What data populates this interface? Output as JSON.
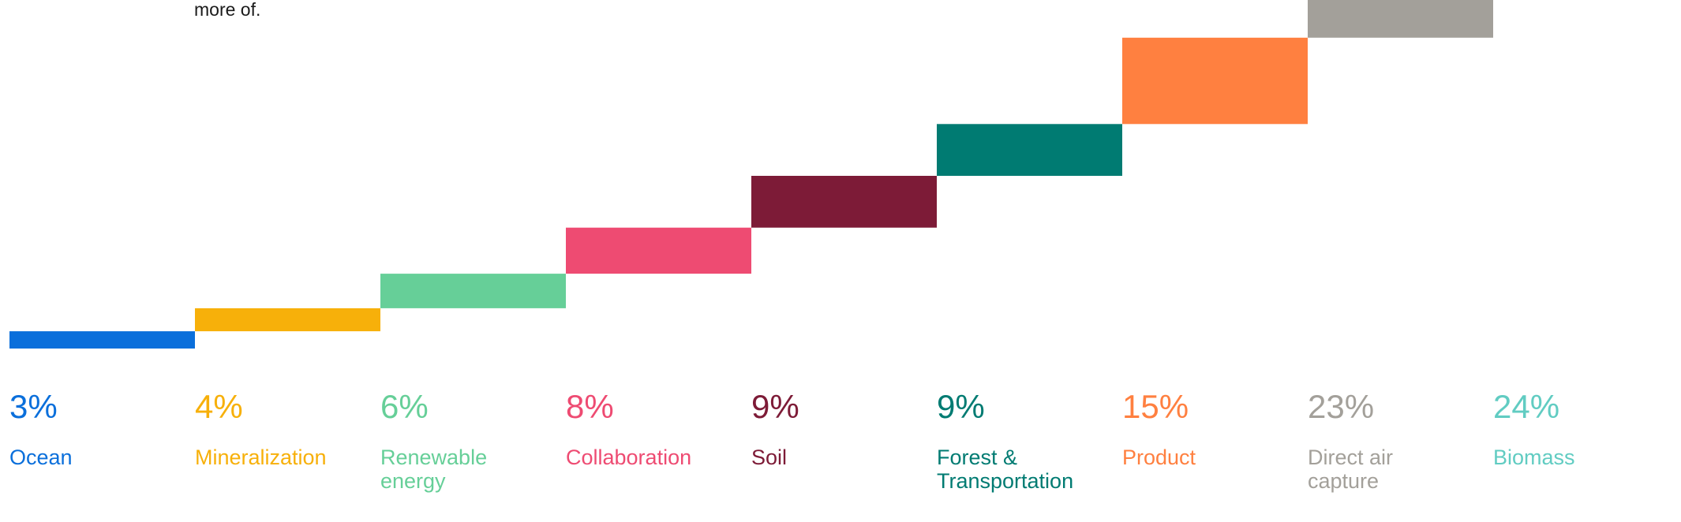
{
  "intro_text": "more of.",
  "chart_data": {
    "type": "bar",
    "categories": [
      "Ocean",
      "Mineralization",
      "Renewable energy",
      "Collaboration",
      "Soil",
      "Forest & Transportation",
      "Product",
      "Direct air capture",
      "Biomass"
    ],
    "category_lines": [
      [
        "Ocean"
      ],
      [
        "Mineralization"
      ],
      [
        "Renewable",
        "energy"
      ],
      [
        "Collaboration"
      ],
      [
        "Soil"
      ],
      [
        "Forest &",
        "Transportation"
      ],
      [
        "Product"
      ],
      [
        "Direct air",
        "capture"
      ],
      [
        "Biomass"
      ]
    ],
    "values": [
      3,
      4,
      6,
      8,
      9,
      9,
      15,
      23,
      24
    ],
    "value_labels": [
      "3%",
      "4%",
      "6%",
      "8%",
      "9%",
      "9%",
      "15%",
      "23%",
      "24%"
    ],
    "colors": [
      "#0a6fdb",
      "#f7b00a",
      "#66cf98",
      "#ee4b72",
      "#7d1b37",
      "#007b72",
      "#ff8040",
      "#a3a09a",
      "#61ccc2"
    ],
    "cumulative": true,
    "title": "",
    "xlabel": "",
    "ylabel": "",
    "grid": false,
    "legend": "none"
  }
}
